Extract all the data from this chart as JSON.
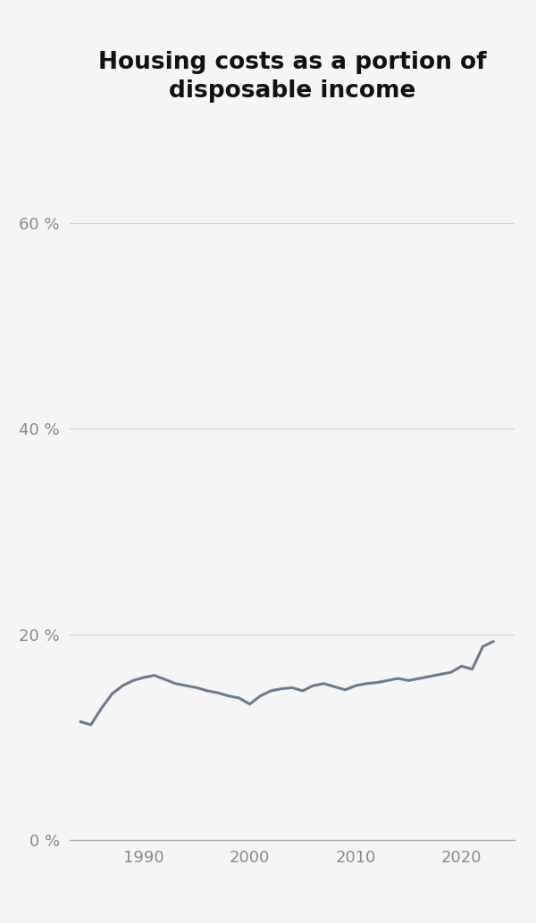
{
  "title": "Housing costs as a portion of\ndisposable income",
  "title_fontsize": 19,
  "background_color": "#f5f5f5",
  "line_color": "#6b7b8d",
  "line_width": 2.2,
  "years": [
    1984,
    1985,
    1986,
    1987,
    1988,
    1989,
    1990,
    1991,
    1992,
    1993,
    1994,
    1995,
    1996,
    1997,
    1998,
    1999,
    2000,
    2001,
    2002,
    2003,
    2004,
    2005,
    2006,
    2007,
    2008,
    2009,
    2010,
    2011,
    2012,
    2013,
    2014,
    2015,
    2016,
    2017,
    2018,
    2019,
    2020,
    2021,
    2022,
    2023
  ],
  "values": [
    11.5,
    11.2,
    12.8,
    14.2,
    15.0,
    15.5,
    15.8,
    16.0,
    15.6,
    15.2,
    15.0,
    14.8,
    14.5,
    14.3,
    14.0,
    13.8,
    13.2,
    14.0,
    14.5,
    14.7,
    14.8,
    14.5,
    15.0,
    15.2,
    14.9,
    14.6,
    15.0,
    15.2,
    15.3,
    15.5,
    15.7,
    15.5,
    15.7,
    15.9,
    16.1,
    16.3,
    16.9,
    16.6,
    18.8,
    19.3
  ],
  "ylim": [
    0,
    70
  ],
  "yticks": [
    0,
    20,
    40,
    60
  ],
  "ytick_labels": [
    "0 %",
    "20 %",
    "40 %",
    "60 %"
  ],
  "xticks": [
    1990,
    2000,
    2010,
    2020
  ],
  "grid_color": "#cccccc",
  "grid_linewidth": 0.8,
  "tick_color": "#888888",
  "tick_fontsize": 13,
  "xlim": [
    1983,
    2025
  ]
}
